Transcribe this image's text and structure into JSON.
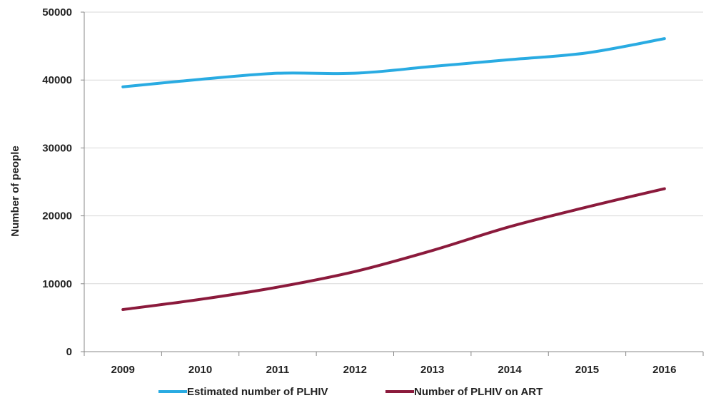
{
  "chart_data": {
    "type": "line",
    "title": "",
    "xlabel": "",
    "ylabel": "Number of people",
    "x": [
      "2009",
      "2010",
      "2011",
      "2012",
      "2013",
      "2014",
      "2015",
      "2016"
    ],
    "ylim": [
      0,
      50000
    ],
    "yticks": [
      0,
      10000,
      20000,
      30000,
      40000,
      50000
    ],
    "grid": "horizontal",
    "legend": "bottom",
    "series": [
      {
        "name": "Estimated number of PLHIV",
        "color": "#29abe2",
        "values": [
          39000,
          40100,
          41000,
          41000,
          42000,
          43000,
          44000,
          46100
        ]
      },
      {
        "name": "Number of PLHIV on ART",
        "color": "#8b1a3c",
        "values": [
          6200,
          7700,
          9500,
          11800,
          14900,
          18400,
          21300,
          24000
        ]
      }
    ]
  }
}
